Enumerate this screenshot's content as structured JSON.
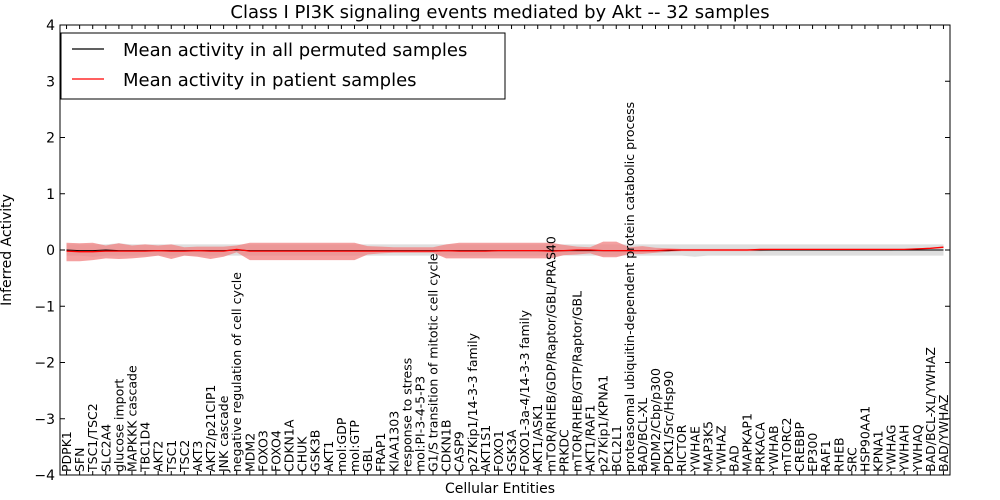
{
  "chart_data": {
    "type": "line",
    "title": "Class I PI3K signaling events mediated by Akt -- 32 samples",
    "xlabel": "Cellular Entities",
    "ylabel": "Inferred Activity",
    "ylim": [
      -4,
      4
    ],
    "yticks": [
      4,
      3,
      2,
      1,
      0,
      -1,
      -2,
      -3,
      -4
    ],
    "ytick_labels": [
      "4",
      "3",
      "2",
      "1",
      "0",
      "−1",
      "−2",
      "−3",
      "−4"
    ],
    "grid": false,
    "legend_position": "top-left",
    "categories": [
      "PDPK1",
      "SFN",
      "TSC1/TSC2",
      "SLC2A4",
      "glucose import",
      "MAPKKK cascade",
      "TBC1D4",
      "AKT2",
      "TSC1",
      "TSC2",
      "AKT3",
      "AKT2/p21CIP1",
      "JNK cascade",
      "negative regulation of cell cycle",
      "MDM2",
      "FOXO3",
      "FOXO4",
      "CDKN1A",
      "CHUK",
      "GSK3B",
      "AKT1",
      "mol:GDP",
      "mol:GTP",
      "GBL",
      "FRAP1",
      "KIAA1303",
      "response to stress",
      "mol:PI-3-4-5-P3",
      "G1/S transition of mitotic cell cycle",
      "CDKN1B",
      "CASP9",
      "p27Kip1/14-3-3 family",
      "AKT1S1",
      "FOXO1",
      "GSK3A",
      "FOXO1-3a-4/14-3-3 family",
      "AKT1/ASK1",
      "mTOR/RHEB/GDP/Raptor/GBL/PRAS40",
      "PRKDC",
      "mTOR/RHEB/GTP/Raptor/GBL",
      "AKT1/RAF1",
      "p27Kip1/KPNA1",
      "BCL2L1",
      "proteasomal ubiquitin-dependent protein catabolic process",
      "BAD/BCL-XL",
      "MDM2/Cbp/p300",
      "PDK1/Src/Hsp90",
      "RICTOR",
      "YWHAE",
      "MAP3K5",
      "YWHAZ",
      "BAD",
      "MAPKAP1",
      "PRKACA",
      "YWHAB",
      "mTORC2",
      "CREBBP",
      "EP300",
      "RAF1",
      "RHEB",
      "SRC",
      "HSP90AA1",
      "KPNA1",
      "YWHAG",
      "YWHAH",
      "YWHAQ",
      "BAD/BCL-XL/YWHAZ",
      "BAD/YWHAZ"
    ],
    "series": [
      {
        "name": "Mean activity in all permuted samples",
        "color": "#000000",
        "values": [
          0,
          -0.01,
          -0.01,
          0,
          -0.01,
          -0.01,
          -0.01,
          -0.01,
          -0.01,
          -0.01,
          -0.01,
          -0.01,
          -0.01,
          0,
          -0.01,
          -0.01,
          -0.01,
          -0.01,
          -0.01,
          -0.01,
          -0.01,
          -0.01,
          -0.01,
          -0.01,
          -0.01,
          -0.01,
          -0.01,
          -0.01,
          -0.01,
          -0.01,
          -0.01,
          -0.01,
          -0.01,
          -0.01,
          -0.01,
          -0.01,
          -0.01,
          -0.01,
          -0.01,
          -0.01,
          -0.01,
          -0.01,
          -0.01,
          -0.01,
          -0.01,
          -0.01,
          -0.01,
          0,
          0,
          0,
          0,
          0,
          0,
          0,
          0,
          0,
          0,
          0,
          0,
          0,
          0,
          0,
          0,
          0,
          0,
          0,
          0,
          0
        ],
        "band_upper": [
          0.1,
          0.1,
          0.1,
          0.1,
          0.12,
          0.1,
          0.1,
          0.1,
          0.1,
          0.1,
          0.1,
          0.1,
          0.1,
          0.1,
          0.1,
          0.1,
          0.1,
          0.1,
          0.1,
          0.1,
          0.1,
          0.1,
          0.1,
          0.1,
          0.1,
          0.1,
          0.1,
          0.1,
          0.1,
          0.1,
          0.1,
          0.1,
          0.1,
          0.1,
          0.1,
          0.1,
          0.1,
          0.1,
          0.1,
          0.1,
          0.1,
          0.1,
          0.1,
          0.1,
          0.1,
          0.1,
          0.1,
          0.1,
          0.1,
          0.1,
          0.1,
          0.1,
          0.1,
          0.1,
          0.1,
          0.1,
          0.1,
          0.1,
          0.1,
          0.1,
          0.1,
          0.1,
          0.1,
          0.1,
          0.1,
          0.1,
          0.1,
          0.1
        ],
        "band_lower": [
          -0.1,
          -0.1,
          -0.12,
          -0.1,
          -0.1,
          -0.1,
          -0.1,
          -0.1,
          -0.1,
          -0.1,
          -0.1,
          -0.1,
          -0.1,
          -0.1,
          -0.1,
          -0.1,
          -0.1,
          -0.1,
          -0.1,
          -0.1,
          -0.1,
          -0.1,
          -0.1,
          -0.1,
          -0.1,
          -0.1,
          -0.1,
          -0.1,
          -0.1,
          -0.1,
          -0.1,
          -0.1,
          -0.1,
          -0.1,
          -0.1,
          -0.1,
          -0.1,
          -0.1,
          -0.1,
          -0.1,
          -0.1,
          -0.1,
          -0.1,
          -0.1,
          -0.1,
          -0.1,
          -0.1,
          -0.1,
          -0.12,
          -0.1,
          -0.1,
          -0.1,
          -0.1,
          -0.1,
          -0.1,
          -0.1,
          -0.1,
          -0.1,
          -0.1,
          -0.1,
          -0.1,
          -0.1,
          -0.1,
          -0.1,
          -0.1,
          -0.1,
          -0.1,
          -0.1
        ]
      },
      {
        "name": "Mean activity in patient samples",
        "color": "#ff0000",
        "values": [
          -0.02,
          -0.03,
          -0.03,
          -0.02,
          -0.02,
          -0.02,
          -0.02,
          -0.01,
          -0.02,
          -0.02,
          -0.01,
          -0.02,
          -0.02,
          0.01,
          -0.02,
          -0.02,
          -0.02,
          -0.02,
          -0.02,
          -0.02,
          -0.02,
          -0.02,
          -0.02,
          -0.02,
          -0.02,
          -0.02,
          -0.02,
          -0.02,
          -0.02,
          -0.01,
          -0.02,
          -0.02,
          -0.02,
          -0.01,
          -0.01,
          -0.01,
          -0.01,
          -0.02,
          -0.01,
          0,
          0,
          -0.01,
          -0.01,
          -0.01,
          -0.01,
          -0.01,
          0,
          0,
          0,
          0,
          0,
          0,
          0,
          0.01,
          0.01,
          0.01,
          0.01,
          0.01,
          0.01,
          0.01,
          0.01,
          0.01,
          0.01,
          0.01,
          0.01,
          0.02,
          0.03,
          0.05
        ],
        "band_upper": [
          0.13,
          0.12,
          0.13,
          0.08,
          0.12,
          0.08,
          0.1,
          0.08,
          0.1,
          0.05,
          0.06,
          0.06,
          0.06,
          0.08,
          0.13,
          0.13,
          0.13,
          0.13,
          0.13,
          0.13,
          0.13,
          0.13,
          0.13,
          0.07,
          0.06,
          0.05,
          0.05,
          0.05,
          0.05,
          0.1,
          0.13,
          0.13,
          0.13,
          0.13,
          0.13,
          0.13,
          0.13,
          0.13,
          0.09,
          0.06,
          0.05,
          0.15,
          0.15,
          0.05,
          0.07,
          0.04,
          0.03,
          0.02,
          0.02,
          0.02,
          0.02,
          0.02,
          0.02,
          0.02,
          0.02,
          0.02,
          0.02,
          0.02,
          0.02,
          0.02,
          0.02,
          0.02,
          0.02,
          0.02,
          0.02,
          0.03,
          0.04,
          0.06
        ],
        "band_lower": [
          -0.2,
          -0.2,
          -0.18,
          -0.15,
          -0.16,
          -0.15,
          -0.13,
          -0.1,
          -0.16,
          -0.1,
          -0.12,
          -0.16,
          -0.12,
          -0.04,
          -0.18,
          -0.18,
          -0.18,
          -0.18,
          -0.18,
          -0.18,
          -0.18,
          -0.18,
          -0.18,
          -0.08,
          -0.06,
          -0.05,
          -0.05,
          -0.05,
          -0.05,
          -0.15,
          -0.15,
          -0.15,
          -0.15,
          -0.15,
          -0.15,
          -0.15,
          -0.15,
          -0.15,
          -0.09,
          -0.08,
          -0.06,
          -0.13,
          -0.13,
          -0.07,
          -0.07,
          -0.05,
          -0.03,
          -0.02,
          -0.02,
          -0.02,
          -0.02,
          -0.02,
          -0.02,
          -0.02,
          -0.01,
          -0.01,
          -0.01,
          -0.01,
          -0.01,
          -0.01,
          -0.01,
          -0.01,
          -0.01,
          -0.01,
          0,
          0.01,
          0.02,
          0.04
        ]
      }
    ]
  }
}
